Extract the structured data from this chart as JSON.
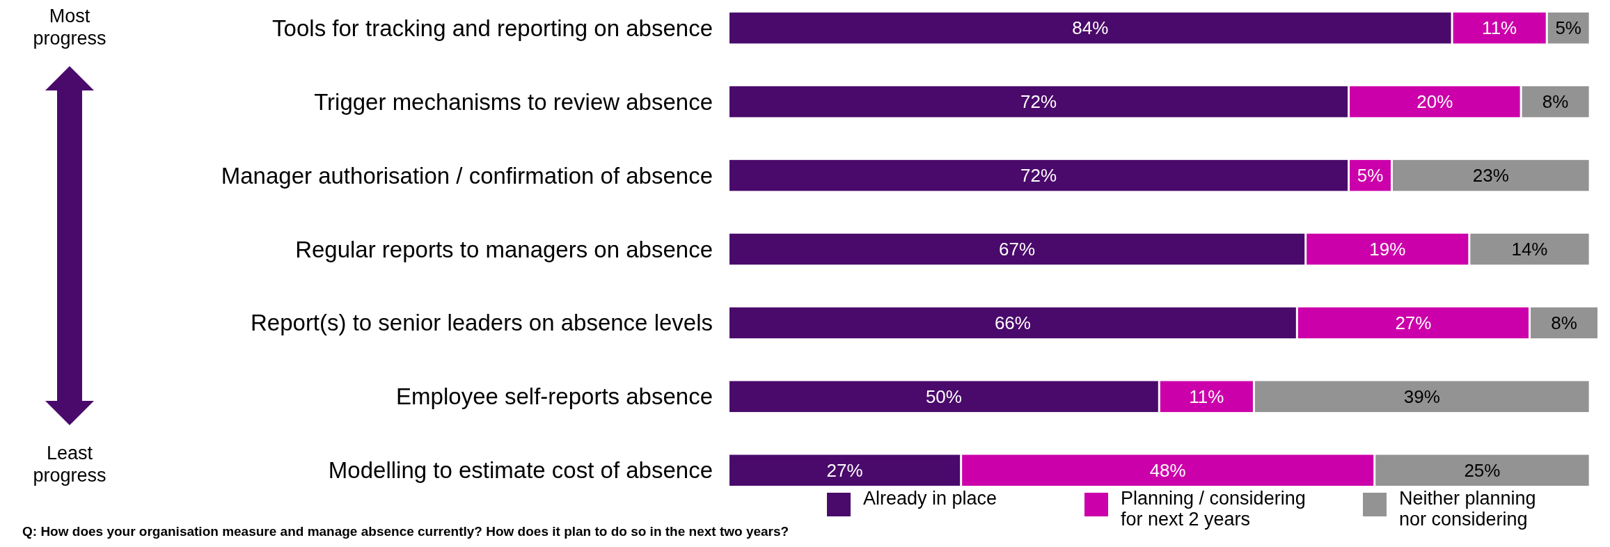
{
  "chart_data": {
    "type": "bar",
    "orientation": "horizontal",
    "stacked": true,
    "legend": "bottom right",
    "categories": [
      "Tools for tracking and reporting on absence",
      "Trigger mechanisms to review absence",
      "Manager authorisation / confirmation of absence",
      "Regular reports to managers on absence",
      "Report(s) to senior leaders on absence levels",
      "Employee self-reports absence",
      "Modelling to estimate cost of absence"
    ],
    "series": [
      {
        "name": "Already in place",
        "color": "#4a0a6b",
        "values": [
          84,
          72,
          72,
          67,
          66,
          50,
          27
        ],
        "value_labels": [
          "84%",
          "72%",
          "72%",
          "67%",
          "66%",
          "50%",
          "27%"
        ]
      },
      {
        "name": "Planning / considering\nfor next 2 years",
        "color": "#cc00aa",
        "values": [
          11,
          20,
          5,
          19,
          27,
          11,
          48
        ],
        "value_labels": [
          "11%",
          "20%",
          "5%",
          "19%",
          "27%",
          "11%",
          "48%"
        ]
      },
      {
        "name": "Neither planning\nnor considering",
        "color": "#939393",
        "values": [
          5,
          8,
          23,
          14,
          8,
          39,
          25
        ],
        "value_labels": [
          "5%",
          "8%",
          "23%",
          "14%",
          "8%",
          "39%",
          "25%"
        ]
      }
    ],
    "annotations": [
      "Most\nprogress",
      "Least\nprogress",
      "Q: How does your organisation measure and manage absence currently? How does it plan to do so in the next two years?"
    ]
  }
}
